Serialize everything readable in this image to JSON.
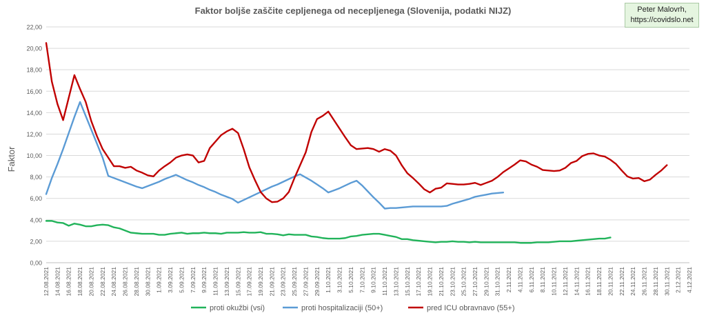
{
  "chart_data": {
    "type": "line",
    "title": "Faktor boljše zaščite cepljenega od necepljenega (Slovenija, podatki NIJZ)",
    "ylabel": "Faktor",
    "xlabel": "",
    "ylim": [
      0,
      22
    ],
    "yticks": [
      "0,00",
      "2,00",
      "4,00",
      "6,00",
      "8,00",
      "10,00",
      "12,00",
      "14,00",
      "16,00",
      "18,00",
      "20,00",
      "22,00"
    ],
    "xticks": [
      "12.08.2021",
      "14.08.2021",
      "16.08.2021",
      "18.08.2021",
      "20.08.2021",
      "22.08.2021",
      "24.08.2021",
      "26.08.2021",
      "28.08.2021",
      "30.08.2021",
      "1.09.2021",
      "3.09.2021",
      "5.09.2021",
      "7.09.2021",
      "9.09.2021",
      "11.09.2021",
      "13.09.2021",
      "15.09.2021",
      "17.09.2021",
      "19.09.2021",
      "21.09.2021",
      "23.09.2021",
      "25.09.2021",
      "27.09.2021",
      "29.09.2021",
      "1.10.2021",
      "3.10.2021",
      "5.10.2021",
      "7.10.2021",
      "9.10.2021",
      "11.10.2021",
      "13.10.2021",
      "15.10.2021",
      "17.10.2021",
      "19.10.2021",
      "21.10.2021",
      "23.10.2021",
      "25.10.2021",
      "27.10.2021",
      "29.10.2021",
      "31.10.2021",
      "2.11.2021",
      "4.11.2021",
      "6.11.2021",
      "8.11.2021",
      "10.11.2021",
      "12.11.2021",
      "14.11.2021",
      "16.11.2021",
      "18.11.2021",
      "20.11.2021",
      "22.11.2021",
      "24.11.2021",
      "26.11.2021",
      "28.11.2021",
      "30.11.2021",
      "2.12.2021",
      "4.12.2021"
    ],
    "grid": true,
    "legend_position": "bottom",
    "series": [
      {
        "name": "proti okužbi (vsi)",
        "color": "#21b35a",
        "start_index": 0,
        "values": [
          3.9,
          3.9,
          3.75,
          3.7,
          3.45,
          3.65,
          3.55,
          3.4,
          3.4,
          3.5,
          3.55,
          3.5,
          3.3,
          3.2,
          3.0,
          2.8,
          2.75,
          2.7,
          2.7,
          2.7,
          2.6,
          2.6,
          2.7,
          2.75,
          2.8,
          2.7,
          2.75,
          2.75,
          2.8,
          2.75,
          2.75,
          2.7,
          2.8,
          2.8,
          2.8,
          2.85,
          2.8,
          2.8,
          2.85,
          2.7,
          2.7,
          2.65,
          2.55,
          2.65,
          2.6,
          2.6,
          2.6,
          2.45,
          2.4,
          2.3,
          2.25,
          2.25,
          2.25,
          2.3,
          2.45,
          2.5,
          2.6,
          2.65,
          2.7,
          2.7,
          2.6,
          2.5,
          2.4,
          2.2,
          2.2,
          2.1,
          2.05,
          2.0,
          1.95,
          1.9,
          1.95,
          1.95,
          2.0,
          1.95,
          1.95,
          1.9,
          1.95,
          1.9,
          1.9,
          1.9,
          1.9,
          1.9,
          1.9,
          1.9,
          1.85,
          1.85,
          1.85,
          1.9,
          1.9,
          1.9,
          1.95,
          2.0,
          2.0,
          2.0,
          2.05,
          2.1,
          2.15,
          2.2,
          2.25,
          2.25,
          2.35
        ]
      },
      {
        "name": "proti hospitalizaciji (50+)",
        "color": "#5b9bd5",
        "start_index": 0,
        "values": [
          6.4,
          7.9,
          9.2,
          10.6,
          12.1,
          13.6,
          15.0,
          13.7,
          12.4,
          11.1,
          9.8,
          8.1,
          7.9,
          7.7,
          7.5,
          7.3,
          7.1,
          6.95,
          7.15,
          7.35,
          7.55,
          7.8,
          8.0,
          8.2,
          7.95,
          7.7,
          7.5,
          7.25,
          7.05,
          6.8,
          6.6,
          6.35,
          6.15,
          5.95,
          5.6,
          5.85,
          6.1,
          6.35,
          6.6,
          6.85,
          7.1,
          7.3,
          7.55,
          7.8,
          8.05,
          8.25,
          7.95,
          7.65,
          7.3,
          6.95,
          6.55,
          6.75,
          6.95,
          7.2,
          7.45,
          7.65,
          7.2,
          6.65,
          6.1,
          5.6,
          5.05,
          5.1,
          5.1,
          5.15,
          5.2,
          5.25,
          5.25,
          5.25,
          5.25,
          5.25,
          5.25,
          5.3,
          5.5,
          5.65,
          5.8,
          5.95,
          6.15,
          6.25,
          6.35,
          6.45,
          6.5,
          6.55
        ]
      },
      {
        "name": "pred ICU obravnavo (55+)",
        "color": "#c00000",
        "start_index": 0,
        "values": [
          20.5,
          16.9,
          14.8,
          13.3,
          15.4,
          17.5,
          16.2,
          15.0,
          13.2,
          11.8,
          10.6,
          9.8,
          9.0,
          9.0,
          8.85,
          8.95,
          8.6,
          8.4,
          8.15,
          8.05,
          8.6,
          9.0,
          9.35,
          9.8,
          10.0,
          10.1,
          10.0,
          9.35,
          9.5,
          10.7,
          11.3,
          11.9,
          12.25,
          12.5,
          12.1,
          10.6,
          8.9,
          7.7,
          6.6,
          6.0,
          5.65,
          5.7,
          6.0,
          6.6,
          7.9,
          9.1,
          10.3,
          12.2,
          13.4,
          13.7,
          14.1,
          13.3,
          12.5,
          11.7,
          10.95,
          10.6,
          10.65,
          10.7,
          10.6,
          10.35,
          10.6,
          10.45,
          10.0,
          9.1,
          8.35,
          7.9,
          7.4,
          6.85,
          6.55,
          6.9,
          7.0,
          7.4,
          7.35,
          7.3,
          7.3,
          7.35,
          7.45,
          7.25,
          7.45,
          7.65,
          8.0,
          8.45,
          8.8,
          9.15,
          9.55,
          9.45,
          9.15,
          8.95,
          8.65,
          8.6,
          8.55,
          8.6,
          8.85,
          9.3,
          9.5,
          9.95,
          10.15,
          10.2,
          10.0,
          9.9,
          9.6,
          9.2,
          8.6,
          8.05,
          7.85,
          7.9,
          7.6,
          7.75,
          8.2,
          8.6,
          9.1
        ]
      }
    ]
  },
  "credit": {
    "line1": "Peter Malovrh,",
    "line2": "https://covidslo.net"
  }
}
